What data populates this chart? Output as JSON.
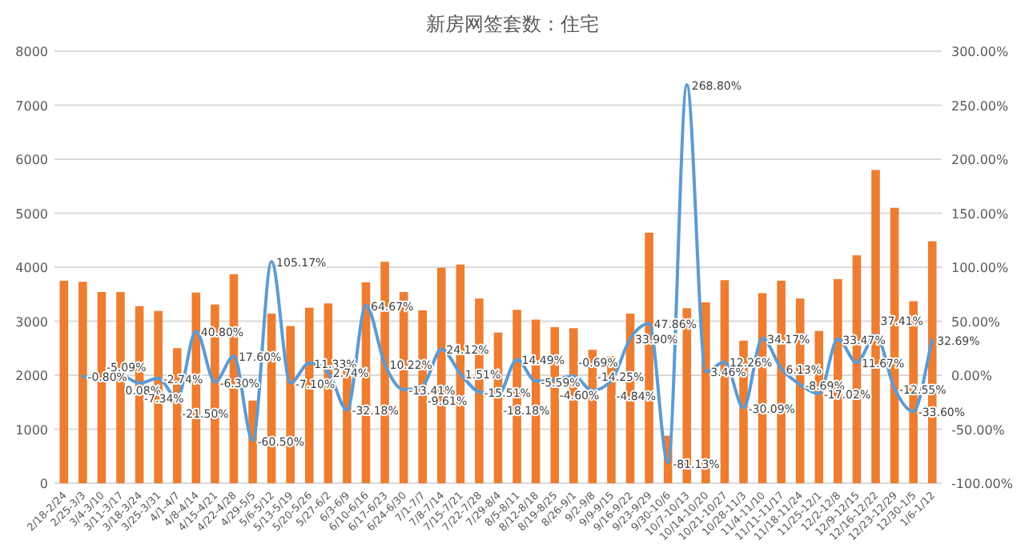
{
  "chart_data": {
    "type": "bar",
    "title": "新房网签套数：住宅",
    "categories": [
      "2/18-2/24",
      "2/25-3/3",
      "3/4-3/10",
      "3/11-3/17",
      "3/18-3/24",
      "3/25-3/31",
      "4/1-4/7",
      "4/8-4/14",
      "4/15-4/21",
      "4/22-4/28",
      "4/29-5/5",
      "5/6-5/12",
      "5/13-5/19",
      "5/20-5/26",
      "5/27-6/2",
      "6/3-6/9",
      "6/10-6/16",
      "6/17-6/23",
      "6/24-6/30",
      "7/1-7/7",
      "7/8-7/14",
      "7/15-7/21",
      "7/22-7/28",
      "7/29-8/4",
      "8/5-8/11",
      "8/12-8/18",
      "8/19-8/25",
      "8/26-9/1",
      "9/2-9/8",
      "9/9-9/15",
      "9/16-9/22",
      "9/23-9/29",
      "9/30-10/6",
      "10/7-10/13",
      "10/14-10/20",
      "10/21-10/27",
      "10/28-11/3",
      "11/4-11/10",
      "11/11-11/17",
      "11/18-11/24",
      "11/25-12/1",
      "12/2-12/8",
      "12/9-12/15",
      "12/16-12/22",
      "12/23-12/29",
      "12/30-1/5",
      "1/6-1/12"
    ],
    "series": [
      {
        "color": "#ed7d31",
        "values": [
          3750,
          3730,
          3540,
          3540,
          3280,
          3190,
          2500,
          3530,
          3310,
          3870,
          1530,
          3140,
          2910,
          3250,
          3330,
          2260,
          3720,
          4100,
          3540,
          3200,
          3990,
          4050,
          3420,
          2790,
          3210,
          3030,
          2890,
          2870,
          2470,
          2350,
          3140,
          4640,
          880,
          3240,
          3350,
          3760,
          2640,
          3520,
          3750,
          3420,
          2820,
          3780,
          4220,
          5800,
          5100,
          3370,
          4480
        ]
      },
      {
        "type": "line",
        "axis": "y2",
        "color": "#5b9bd5",
        "values": [
          null,
          -0.8,
          -5.09,
          0.08,
          -7.34,
          -2.74,
          -21.5,
          40.8,
          -6.3,
          17.6,
          -60.5,
          105.17,
          -7.1,
          11.33,
          2.74,
          -32.18,
          64.67,
          10.22,
          -13.41,
          -9.61,
          24.12,
          1.51,
          -15.51,
          -18.18,
          14.49,
          -5.59,
          -4.6,
          -0.69,
          -14.25,
          -4.84,
          33.9,
          47.86,
          -81.13,
          268.8,
          3.46,
          12.26,
          -30.09,
          34.17,
          6.13,
          -8.69,
          -17.02,
          33.47,
          11.67,
          37.41,
          -12.55,
          -33.6,
          32.69
        ],
        "value_labels": [
          null,
          "-0.80%",
          "-5.09%",
          "0.08%",
          "-7.34%",
          "-2.74%",
          "-21.50%",
          "40.80%",
          "-6.30%",
          "17.60%",
          "-60.50%",
          "105.17%",
          "-7.10%",
          "11.33%",
          "2.74%",
          "-32.18%",
          "64.67%",
          "10.22%",
          "-13.41%",
          "-9.61%",
          "24.12%",
          "1.51%",
          "-15.51%",
          "-18.18%",
          "14.49%",
          "-5.59%",
          "-4.60%",
          "-0.69%",
          "-14.25%",
          "-4.84%",
          "33.90%",
          "47.86%",
          "-81.13%",
          "268.80%",
          "3.46%",
          "12.26%",
          "-30.09%",
          "34.17%",
          "6.13%",
          "-8.69%",
          "-17.02%",
          "33.47%",
          "11.67%",
          "37.41%",
          "-12.55%",
          "-33.60%",
          "32.69%"
        ]
      }
    ],
    "ylim": [
      0,
      8000
    ],
    "yticks": [
      0,
      1000,
      2000,
      3000,
      4000,
      5000,
      6000,
      7000,
      8000
    ],
    "y2lim": [
      -100,
      300
    ],
    "y2ticks": [
      {
        "value": -100,
        "label": "-100.00%"
      },
      {
        "value": -50,
        "label": "-50.00%"
      },
      {
        "value": 0,
        "label": "0.00%"
      },
      {
        "value": 50,
        "label": "50.00%"
      },
      {
        "value": 100,
        "label": "100.00%"
      },
      {
        "value": 150,
        "label": "150.00%"
      },
      {
        "value": 200,
        "label": "200.00%"
      },
      {
        "value": 250,
        "label": "250.00%"
      },
      {
        "value": 300,
        "label": "300.00%"
      }
    ],
    "grid": "y"
  }
}
